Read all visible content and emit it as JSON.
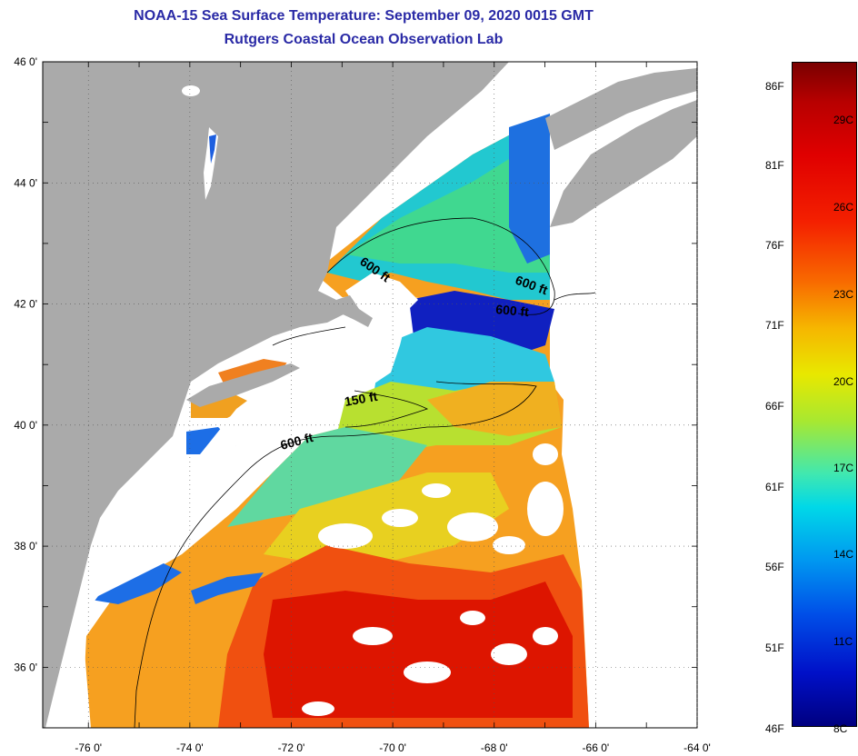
{
  "title": {
    "line1": "NOAA-15 Sea Surface Temperature:  September 09, 2020 0015 GMT",
    "line2": "Rutgers Coastal Ocean Observation Lab"
  },
  "axes": {
    "lat_labels": [
      "46 0'",
      "44 0'",
      "42 0'",
      "40 0'",
      "38 0'",
      "36 0'"
    ],
    "lon_labels": [
      "-76 0'",
      "-74 0'",
      "-72 0'",
      "-70 0'",
      "-68 0'",
      "-66 0'",
      "-64 0'"
    ]
  },
  "isobaths": {
    "label_600_a": "600 ft",
    "label_600_b": "600 ft",
    "label_600_c": "600 ft",
    "label_600_d": "600 ft",
    "label_150": "150 ft"
  },
  "colorbar": {
    "fahrenheit": [
      "86F",
      "81F",
      "76F",
      "71F",
      "66F",
      "61F",
      "56F",
      "51F"
    ],
    "bottom_f": "46F",
    "celsius": [
      "29C",
      "26C",
      "23C",
      "20C",
      "17C",
      "14C",
      "11C",
      "8C"
    ]
  },
  "colors": {
    "land": "#aaaaaa",
    "ocean_nodata": "#ffffff",
    "hot": "#e01e00",
    "warm": "#f47a10",
    "mild": "#f5c020",
    "cool": "#22d4c0",
    "cold": "#1866e8",
    "colder": "#1010c8"
  }
}
